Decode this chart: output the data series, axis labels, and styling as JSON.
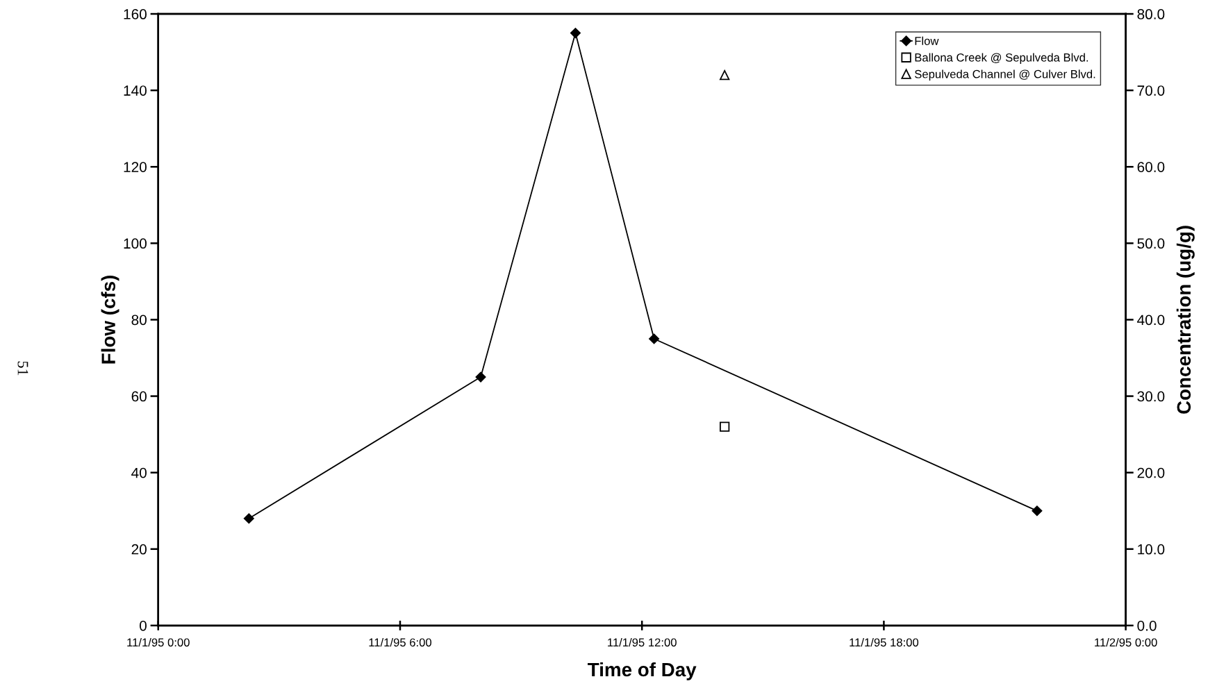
{
  "chart_data": {
    "type": "line",
    "xlabel": "Time of Day",
    "ylabel": "Flow (cfs)",
    "y2label": "Concentration (ug/g)",
    "xlim": [
      "1995-11-01T00:00",
      "1995-11-02T00:00"
    ],
    "xticks": [
      {
        "value": "1995-11-01T00:00",
        "label": "11/1/95 0:00"
      },
      {
        "value": "1995-11-01T06:00",
        "label": "11/1/95 6:00"
      },
      {
        "value": "1995-11-01T12:00",
        "label": "11/1/95 12:00"
      },
      {
        "value": "1995-11-01T18:00",
        "label": "11/1/95 18:00"
      },
      {
        "value": "1995-11-02T00:00",
        "label": "11/2/95 0:00"
      }
    ],
    "ylim": [
      0,
      160
    ],
    "yticks": [
      0,
      20,
      40,
      60,
      80,
      100,
      120,
      140,
      160
    ],
    "y2lim": [
      0,
      80
    ],
    "y2ticks": [
      {
        "value": 0,
        "label": "0.0"
      },
      {
        "value": 10,
        "label": "10.0"
      },
      {
        "value": 20,
        "label": "20.0"
      },
      {
        "value": 30,
        "label": "30.0"
      },
      {
        "value": 40,
        "label": "40.0"
      },
      {
        "value": 50,
        "label": "50.0"
      },
      {
        "value": 60,
        "label": "60.0"
      },
      {
        "value": 70,
        "label": "70.0"
      },
      {
        "value": 80,
        "label": "80.0"
      }
    ],
    "series": [
      {
        "name": "Flow",
        "marker": "diamond",
        "color": "#000000",
        "x": [
          "1995-11-01T02:15",
          "1995-11-01T08:00",
          "1995-11-01T10:21",
          "1995-11-01T12:18",
          "1995-11-01T21:48"
        ],
        "values": [
          28,
          65,
          155,
          75,
          30
        ]
      },
      {
        "name": "Ballona Creek @ Sepulveda Blvd.",
        "type": "scatter",
        "marker": "square",
        "color": "#000000",
        "axis": "y2",
        "x": [
          "1995-11-01T14:03"
        ],
        "values": [
          26
        ]
      },
      {
        "name": "Sepulveda Channel @ Culver Blvd.",
        "type": "scatter",
        "marker": "triangle",
        "color": "#000000",
        "axis": "y2",
        "x": [
          "1995-11-01T14:03"
        ],
        "values": [
          72
        ]
      }
    ],
    "legend": "top right",
    "grid": false,
    "annotations": [
      "51"
    ]
  }
}
